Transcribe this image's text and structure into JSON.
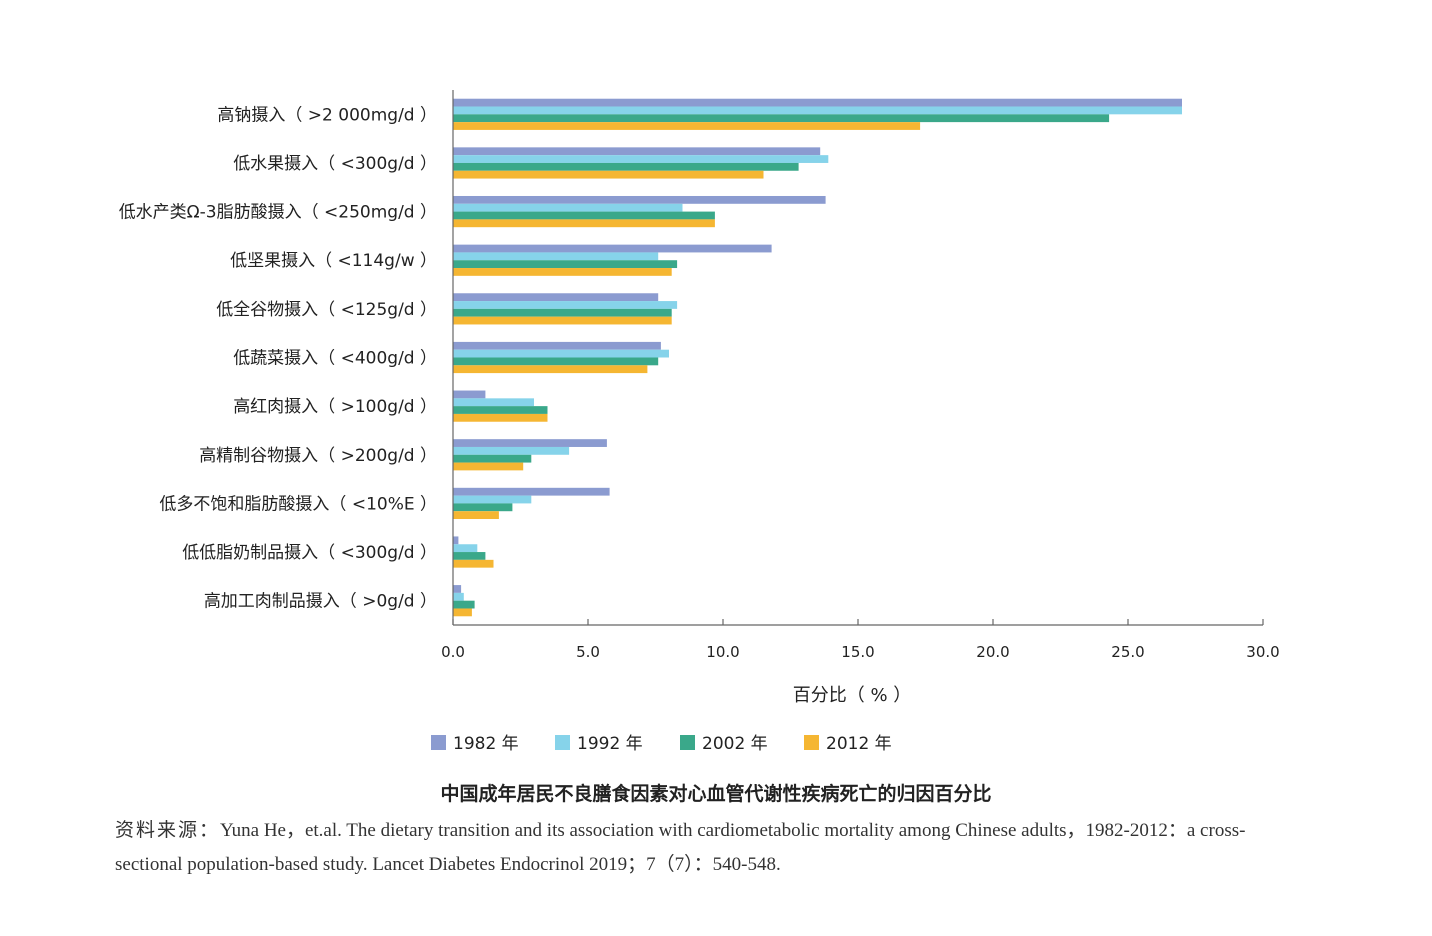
{
  "chart_data": {
    "type": "bar",
    "orientation": "horizontal",
    "categories": [
      "高钠摄入（ >2 000mg/d ）",
      "低水果摄入（ <300g/d ）",
      "低水产类Ω-3脂肪酸摄入（ <250mg/d ）",
      "低坚果摄入（ <114g/w ）",
      "低全谷物摄入（ <125g/d ）",
      "低蔬菜摄入（ <400g/d ）",
      "高红肉摄入（ >100g/d ）",
      "高精制谷物摄入（ >200g/d ）",
      "低多不饱和脂肪酸摄入（ <10%E ）",
      "低低脂奶制品摄入（ <300g/d ）",
      "高加工肉制品摄入（ >0g/d ）"
    ],
    "series": [
      {
        "name": "1982 年",
        "color": "#8b9bd0",
        "values": [
          27.0,
          13.6,
          13.8,
          11.8,
          7.6,
          7.7,
          1.2,
          5.7,
          5.8,
          0.2,
          0.3
        ]
      },
      {
        "name": "1992 年",
        "color": "#86d3ea",
        "values": [
          27.0,
          13.9,
          8.5,
          7.6,
          8.3,
          8.0,
          3.0,
          4.3,
          2.9,
          0.9,
          0.4
        ]
      },
      {
        "name": "2002 年",
        "color": "#3aa88a",
        "values": [
          24.3,
          12.8,
          9.7,
          8.3,
          8.1,
          7.6,
          3.5,
          2.9,
          2.2,
          1.2,
          0.8
        ]
      },
      {
        "name": "2012 年",
        "color": "#f5b632",
        "values": [
          17.3,
          11.5,
          9.7,
          8.1,
          8.1,
          7.2,
          3.5,
          2.6,
          1.7,
          1.5,
          0.7
        ]
      }
    ],
    "xlabel": "百分比（ % ）",
    "xlim": [
      0,
      30
    ],
    "xticks": [
      "0.0",
      "5.0",
      "10.0",
      "15.0",
      "20.0",
      "25.0",
      "30.0"
    ],
    "xtick_values": [
      0,
      5,
      10,
      15,
      20,
      25,
      30
    ],
    "legend": "bottom",
    "grid": false
  },
  "caption": "中国成年居民不良膳食因素对心血管代谢性疾病死亡的归因百分比",
  "source": {
    "prefix": "资料来源：",
    "text": "Yuna He，et.al. The dietary transition and its association with cardiometabolic mortality among Chinese adults，1982-2012：a cross-sectional population-based study. Lancet Diabetes Endocrinol 2019；7（7）：540-548."
  }
}
